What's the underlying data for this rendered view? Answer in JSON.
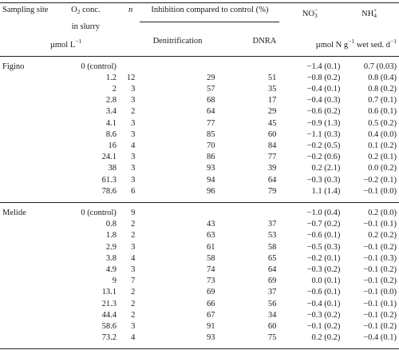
{
  "header": {
    "site": "Sampling site",
    "site2": "",
    "o2_line1": "O2 conc.",
    "o2_line2": "in slurry",
    "n": "n",
    "inhibition": "Inhibition compared to control (%)",
    "no3": "NO3−",
    "nh4": "NH4+",
    "units_o2": "µmol L−1",
    "denitrification": "Denitrification",
    "dnra": "DNRA",
    "units_rate": "µmol N g−1 wet sed. d−1"
  },
  "groups": [
    {
      "site": "Figino",
      "rows": [
        {
          "o2": "0 (control)",
          "n": "",
          "den": "",
          "dnra": "",
          "no3": "−1.4 (0.1)",
          "nh4": "0.7 (0.03)"
        },
        {
          "o2": "1.2",
          "n": "12",
          "den": "29",
          "dnra": "51",
          "no3": "−0.8 (0.2)",
          "nh4": "0.8 (0.4)"
        },
        {
          "o2": "2",
          "n": "3",
          "den": "57",
          "dnra": "35",
          "no3": "−0.4 (0.1)",
          "nh4": "0.8 (0.2)"
        },
        {
          "o2": "2.8",
          "n": "3",
          "den": "68",
          "dnra": "17",
          "no3": "−0.4 (0.3)",
          "nh4": "0.7 (0.1)"
        },
        {
          "o2": "3.4",
          "n": "2",
          "den": "64",
          "dnra": "29",
          "no3": "−0.6 (0.2)",
          "nh4": "0.6 (0.1)"
        },
        {
          "o2": "4.1",
          "n": "3",
          "den": "77",
          "dnra": "45",
          "no3": "−0.9 (1.3)",
          "nh4": "0.5 (0.2)"
        },
        {
          "o2": "8.6",
          "n": "3",
          "den": "85",
          "dnra": "60",
          "no3": "−1.1 (0.3)",
          "nh4": "0.4 (0.0)"
        },
        {
          "o2": "16",
          "n": "4",
          "den": "70",
          "dnra": "84",
          "no3": "−0.2 (0.5)",
          "nh4": "0.1 (0.2)"
        },
        {
          "o2": "24.1",
          "n": "3",
          "den": "86",
          "dnra": "77",
          "no3": "−0.2 (0.6)",
          "nh4": "0.2 (0.1)"
        },
        {
          "o2": "38",
          "n": "3",
          "den": "93",
          "dnra": "39",
          "no3": "0.2 (2.1)",
          "nh4": "0.0 (0.2)"
        },
        {
          "o2": "61.3",
          "n": "3",
          "den": "94",
          "dnra": "64",
          "no3": "−0.3 (0.3)",
          "nh4": "−0.2 (0.1)"
        },
        {
          "o2": "78.6",
          "n": "6",
          "den": "96",
          "dnra": "79",
          "no3": "1.1 (1.4)",
          "nh4": "−0.1 (0.0)"
        }
      ]
    },
    {
      "site": "Melide",
      "rows": [
        {
          "o2": "0 (control)",
          "n": "9",
          "den": "",
          "dnra": "",
          "no3": "−1.0 (0.4)",
          "nh4": "0.2 (0.0)"
        },
        {
          "o2": "0.8",
          "n": "2",
          "den": "43",
          "dnra": "37",
          "no3": "−0.7 (0.2)",
          "nh4": "−0.1 (0.1)"
        },
        {
          "o2": "1.8",
          "n": "2",
          "den": "63",
          "dnra": "53",
          "no3": "−0.6 (0.1)",
          "nh4": "0.2 (0.2)"
        },
        {
          "o2": "2.9",
          "n": "3",
          "den": "61",
          "dnra": "58",
          "no3": "−0.5 (0.3)",
          "nh4": "−0.1 (0.2)"
        },
        {
          "o2": "3.8",
          "n": "4",
          "den": "58",
          "dnra": "65",
          "no3": "−0.2 (0.1)",
          "nh4": "−0.1 (0.3)"
        },
        {
          "o2": "4.9",
          "n": "3",
          "den": "74",
          "dnra": "64",
          "no3": "−0.3 (0.2)",
          "nh4": "−0.1 (0.2)"
        },
        {
          "o2": "9",
          "n": "7",
          "den": "73",
          "dnra": "69",
          "no3": "0.0 (0.1)",
          "nh4": "−0.1 (0.2)"
        },
        {
          "o2": "13.1",
          "n": "2",
          "den": "69",
          "dnra": "37",
          "no3": "−0.6 (0.1)",
          "nh4": "−0.1 (0.0)"
        },
        {
          "o2": "21.3",
          "n": "2",
          "den": "66",
          "dnra": "56",
          "no3": "−0.4 (0.1)",
          "nh4": "−0.1 (0.1)"
        },
        {
          "o2": "44.4",
          "n": "2",
          "den": "67",
          "dnra": "34",
          "no3": "−0.3 (0.2)",
          "nh4": "−0.1 (0.2)"
        },
        {
          "o2": "58.6",
          "n": "3",
          "den": "91",
          "dnra": "60",
          "no3": "−0.1 (0.2)",
          "nh4": "−0.1 (0.2)"
        },
        {
          "o2": "73.2",
          "n": "4",
          "den": "93",
          "dnra": "75",
          "no3": "0.2 (0.2)",
          "nh4": "−0.4 (0.1)"
        }
      ]
    }
  ]
}
